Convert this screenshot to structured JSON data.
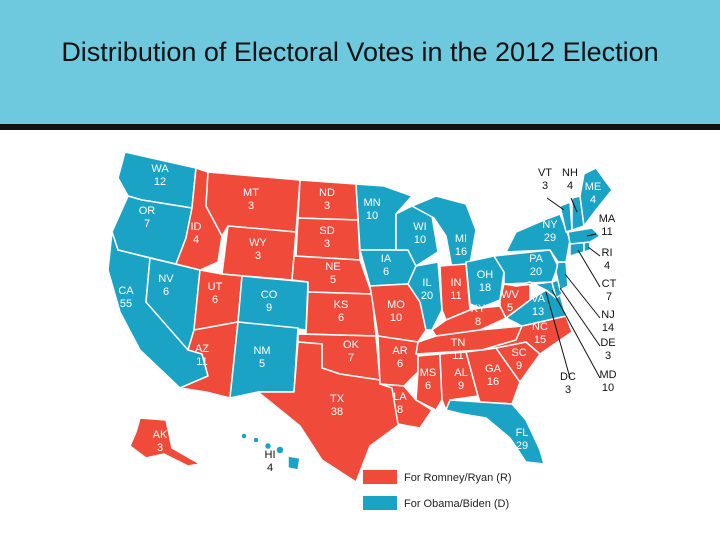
{
  "title": "Distribution of Electoral Votes in the 2012 Election",
  "colors": {
    "republican": "#ef4a3a",
    "democrat": "#1aa3c4",
    "header": "#6ec9df"
  },
  "legend": [
    {
      "label": "For Romney/Ryan (R)",
      "party": "R"
    },
    {
      "label": "For Obama/Biden (D)",
      "party": "D"
    }
  ],
  "states": [
    {
      "abbr": "WA",
      "votes": "12",
      "party": "D"
    },
    {
      "abbr": "OR",
      "votes": "7",
      "party": "D"
    },
    {
      "abbr": "CA",
      "votes": "55",
      "party": "D"
    },
    {
      "abbr": "NV",
      "votes": "6",
      "party": "D"
    },
    {
      "abbr": "ID",
      "votes": "4",
      "party": "R"
    },
    {
      "abbr": "MT",
      "votes": "3",
      "party": "R"
    },
    {
      "abbr": "WY",
      "votes": "3",
      "party": "R"
    },
    {
      "abbr": "UT",
      "votes": "6",
      "party": "R"
    },
    {
      "abbr": "AZ",
      "votes": "11",
      "party": "R"
    },
    {
      "abbr": "CO",
      "votes": "9",
      "party": "D"
    },
    {
      "abbr": "NM",
      "votes": "5",
      "party": "D"
    },
    {
      "abbr": "ND",
      "votes": "3",
      "party": "R"
    },
    {
      "abbr": "SD",
      "votes": "3",
      "party": "R"
    },
    {
      "abbr": "NE",
      "votes": "5",
      "party": "R"
    },
    {
      "abbr": "KS",
      "votes": "6",
      "party": "R"
    },
    {
      "abbr": "OK",
      "votes": "7",
      "party": "R"
    },
    {
      "abbr": "TX",
      "votes": "38",
      "party": "R"
    },
    {
      "abbr": "MN",
      "votes": "10",
      "party": "D"
    },
    {
      "abbr": "IA",
      "votes": "6",
      "party": "D"
    },
    {
      "abbr": "MO",
      "votes": "10",
      "party": "R"
    },
    {
      "abbr": "AR",
      "votes": "6",
      "party": "R"
    },
    {
      "abbr": "LA",
      "votes": "8",
      "party": "R"
    },
    {
      "abbr": "WI",
      "votes": "10",
      "party": "D"
    },
    {
      "abbr": "IL",
      "votes": "20",
      "party": "D"
    },
    {
      "abbr": "MI",
      "votes": "16",
      "party": "D"
    },
    {
      "abbr": "IN",
      "votes": "11",
      "party": "R"
    },
    {
      "abbr": "OH",
      "votes": "18",
      "party": "D"
    },
    {
      "abbr": "KY",
      "votes": "8",
      "party": "R"
    },
    {
      "abbr": "TN",
      "votes": "11",
      "party": "R"
    },
    {
      "abbr": "MS",
      "votes": "6",
      "party": "R"
    },
    {
      "abbr": "AL",
      "votes": "9",
      "party": "R"
    },
    {
      "abbr": "GA",
      "votes": "16",
      "party": "R"
    },
    {
      "abbr": "FL",
      "votes": "29",
      "party": "D"
    },
    {
      "abbr": "SC",
      "votes": "9",
      "party": "R"
    },
    {
      "abbr": "NC",
      "votes": "15",
      "party": "R"
    },
    {
      "abbr": "VA",
      "votes": "13",
      "party": "D"
    },
    {
      "abbr": "WV",
      "votes": "5",
      "party": "R"
    },
    {
      "abbr": "PA",
      "votes": "20",
      "party": "D"
    },
    {
      "abbr": "NY",
      "votes": "29",
      "party": "D"
    },
    {
      "abbr": "ME",
      "votes": "4",
      "party": "D"
    },
    {
      "abbr": "VT",
      "votes": "3",
      "party": "D"
    },
    {
      "abbr": "NH",
      "votes": "4",
      "party": "D"
    },
    {
      "abbr": "MA",
      "votes": "11",
      "party": "D"
    },
    {
      "abbr": "RI",
      "votes": "4",
      "party": "D"
    },
    {
      "abbr": "CT",
      "votes": "7",
      "party": "D"
    },
    {
      "abbr": "NJ",
      "votes": "14",
      "party": "D"
    },
    {
      "abbr": "DE",
      "votes": "3",
      "party": "D"
    },
    {
      "abbr": "MD",
      "votes": "10",
      "party": "D"
    },
    {
      "abbr": "DC",
      "votes": "3",
      "party": "D"
    },
    {
      "abbr": "AK",
      "votes": "3",
      "party": "R"
    },
    {
      "abbr": "HI",
      "votes": "4",
      "party": "D"
    }
  ]
}
